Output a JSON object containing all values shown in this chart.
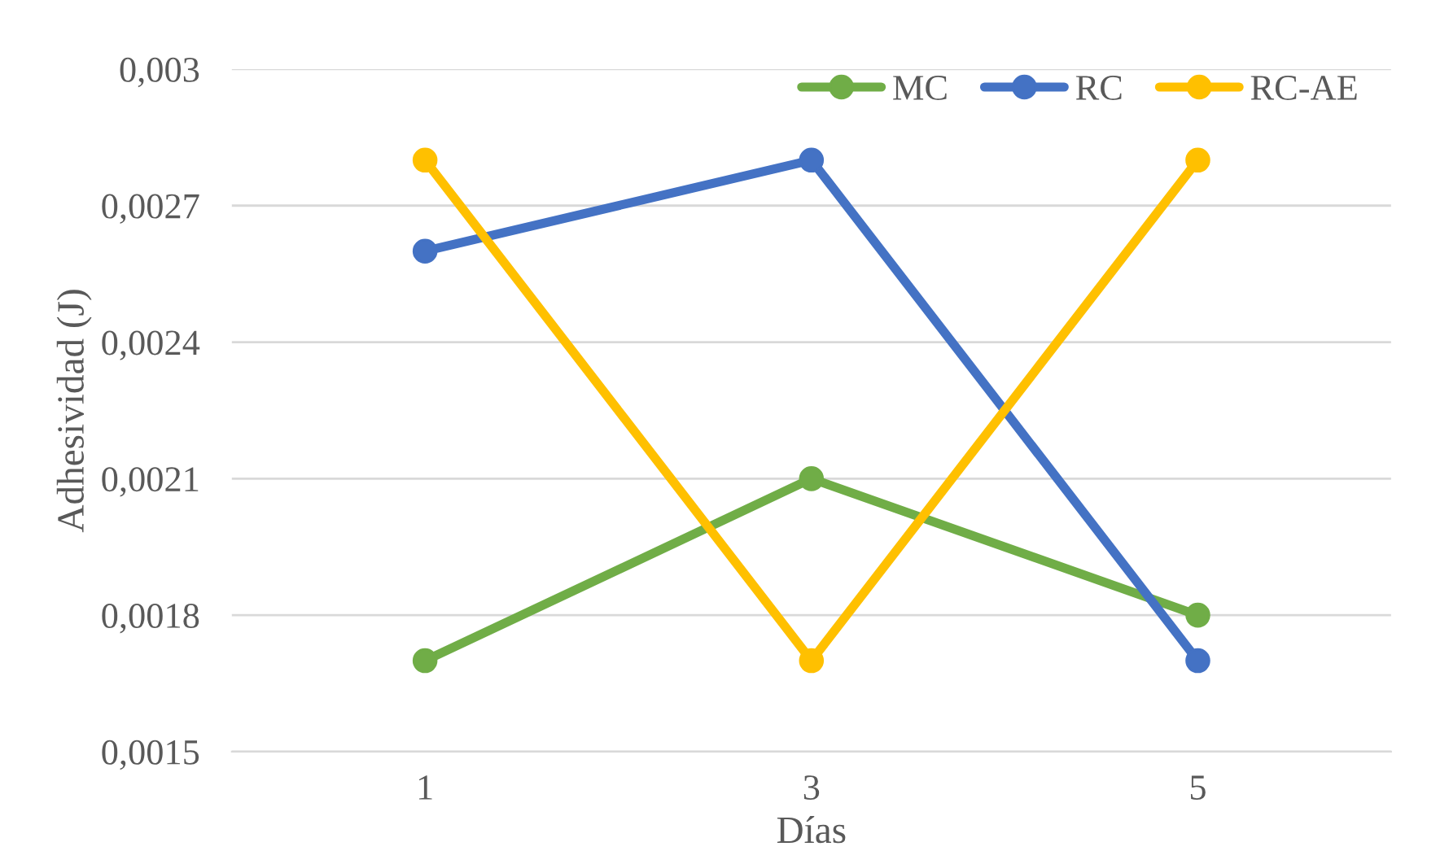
{
  "chart_data": {
    "type": "line",
    "xlabel": "Días",
    "ylabel": "Adhesividad (J)",
    "categories": [
      "1",
      "3",
      "5"
    ],
    "series": [
      {
        "name": "MC",
        "color": "#70ad47",
        "values": [
          0.0017,
          0.0021,
          0.0018
        ]
      },
      {
        "name": "RC",
        "color": "#4472c4",
        "values": [
          0.0026,
          0.0028,
          0.0017
        ]
      },
      {
        "name": "RC-AE",
        "color": "#ffc000",
        "values": [
          0.0028,
          0.0017,
          0.0028
        ]
      }
    ],
    "ylim": [
      0.0015,
      0.003
    ],
    "yticks": [
      {
        "value": 0.0015,
        "label": "0,0015"
      },
      {
        "value": 0.0018,
        "label": "0,0018"
      },
      {
        "value": 0.0021,
        "label": "0,0021"
      },
      {
        "value": 0.0024,
        "label": "0,0024"
      },
      {
        "value": 0.0027,
        "label": "0,0027"
      },
      {
        "value": 0.003,
        "label": "0,003"
      }
    ],
    "grid": "y",
    "legend": "top right",
    "marker": "circle",
    "line_style": "solid"
  }
}
